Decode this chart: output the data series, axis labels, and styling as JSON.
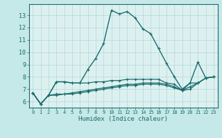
{
  "xlabel": "Humidex (Indice chaleur)",
  "xlim": [
    -0.5,
    23.5
  ],
  "ylim": [
    5.5,
    13.9
  ],
  "bg_color": "#c5e8e8",
  "plot_bg": "#ddf0f0",
  "grid_color": "#b0d8d8",
  "line_color": "#1a6b6b",
  "xticks": [
    0,
    1,
    2,
    3,
    4,
    5,
    6,
    7,
    8,
    9,
    10,
    11,
    12,
    13,
    14,
    15,
    16,
    17,
    18,
    19,
    20,
    21,
    22,
    23
  ],
  "yticks": [
    6,
    7,
    8,
    9,
    10,
    11,
    12,
    13
  ],
  "series_main_x": [
    0,
    1,
    2,
    3,
    4,
    5,
    6,
    7,
    8,
    9,
    10,
    11,
    12,
    13,
    14,
    15,
    16,
    17,
    18,
    19,
    20,
    21,
    22,
    23
  ],
  "series_main_y": [
    6.7,
    5.8,
    6.5,
    7.6,
    7.6,
    7.5,
    7.5,
    8.6,
    9.5,
    10.7,
    13.4,
    13.1,
    13.3,
    12.8,
    11.9,
    11.5,
    10.3,
    9.1,
    8.0,
    7.0,
    7.5,
    9.2,
    7.9,
    8.0
  ],
  "series_low1_y": [
    6.7,
    5.8,
    6.5,
    7.6,
    7.6,
    7.5,
    7.5,
    7.5,
    7.6,
    7.6,
    7.7,
    7.7,
    7.8,
    7.8,
    7.8,
    7.8,
    7.8,
    7.5,
    7.4,
    6.9,
    7.5,
    7.5,
    7.9,
    8.0
  ],
  "series_low2_y": [
    6.7,
    5.8,
    6.5,
    6.6,
    6.6,
    6.7,
    6.8,
    6.9,
    7.0,
    7.1,
    7.2,
    7.3,
    7.4,
    7.4,
    7.5,
    7.5,
    7.5,
    7.4,
    7.2,
    6.9,
    7.2,
    7.5,
    7.9,
    8.0
  ],
  "series_low3_y": [
    6.7,
    5.8,
    6.5,
    6.5,
    6.6,
    6.6,
    6.7,
    6.8,
    6.9,
    7.0,
    7.1,
    7.2,
    7.3,
    7.3,
    7.4,
    7.4,
    7.4,
    7.3,
    7.1,
    6.9,
    7.0,
    7.5,
    7.9,
    8.0
  ]
}
